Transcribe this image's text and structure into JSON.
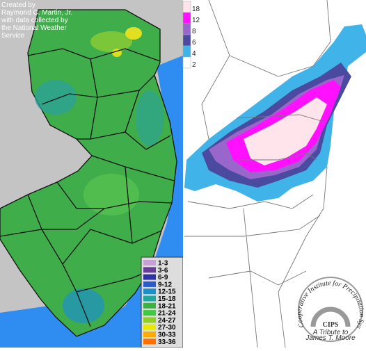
{
  "credit": [
    "Created by",
    "Raymond C. Martin, Jr.",
    "with data collected by",
    "the National Weather",
    "Service"
  ],
  "nj_legend": [
    {
      "label": "1-3",
      "color": "#c8a0d8"
    },
    {
      "label": "3-6",
      "color": "#6a3d9a"
    },
    {
      "label": "6-9",
      "color": "#3030a8"
    },
    {
      "label": "9-12",
      "color": "#2a5acc"
    },
    {
      "label": "12-15",
      "color": "#1e90c8"
    },
    {
      "label": "15-18",
      "color": "#20a8a0"
    },
    {
      "label": "18-21",
      "color": "#3cb043"
    },
    {
      "label": "21-24",
      "color": "#40c840"
    },
    {
      "label": "24-27",
      "color": "#90d020"
    },
    {
      "label": "27-30",
      "color": "#e8e800"
    },
    {
      "label": "30-33",
      "color": "#ffaa00"
    },
    {
      "label": "33-36",
      "color": "#ff7000"
    }
  ],
  "snow_legend": [
    {
      "label": "18",
      "color": "#ffe4ec"
    },
    {
      "label": "12",
      "color": "#ff10ff"
    },
    {
      "label": "8",
      "color": "#9966cc"
    },
    {
      "label": "6",
      "color": "#4a4aa0"
    },
    {
      "label": "4",
      "color": "#40b4e8"
    },
    {
      "label": "2",
      "color": "#ffffff"
    }
  ],
  "logo": {
    "arc_text": "Cooperative Institute for Precipitation Systems",
    "name": "CIPS",
    "tribute": [
      "A Tribute to",
      "James T. Moore"
    ]
  }
}
